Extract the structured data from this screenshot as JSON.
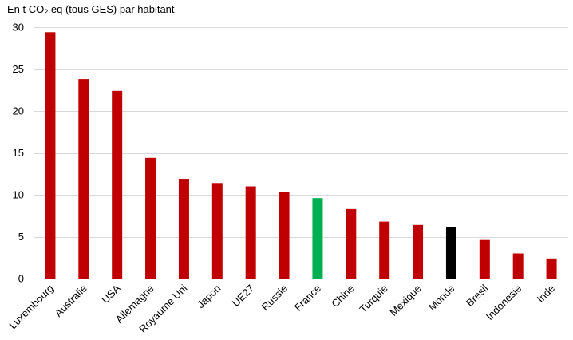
{
  "chart_data": {
    "type": "bar",
    "title_prefix": "En t CO",
    "title_sub": "2",
    "title_suffix": " eq (tous GES) par habitant",
    "categories": [
      "Luxembourg",
      "Australie",
      "USA",
      "Allemagne",
      "Royaume Uni",
      "Japon",
      "UE27",
      "Russie",
      "France",
      "Chine",
      "Turquie",
      "Mexique",
      "Monde",
      "Bresil",
      "Indonesie",
      "Inde"
    ],
    "values": [
      29.4,
      23.8,
      22.4,
      14.4,
      11.9,
      11.4,
      11.0,
      10.3,
      9.6,
      8.3,
      6.8,
      6.4,
      6.1,
      4.6,
      3.0,
      2.4
    ],
    "colors": [
      "#c00000",
      "#c00000",
      "#c00000",
      "#c00000",
      "#c00000",
      "#c00000",
      "#c00000",
      "#c00000",
      "#00b050",
      "#c00000",
      "#c00000",
      "#c00000",
      "#000000",
      "#c00000",
      "#c00000",
      "#c00000"
    ],
    "yticks": [
      0,
      5,
      10,
      15,
      20,
      25,
      30
    ],
    "ylim": [
      0,
      30
    ],
    "grid": true,
    "legend": "none"
  }
}
